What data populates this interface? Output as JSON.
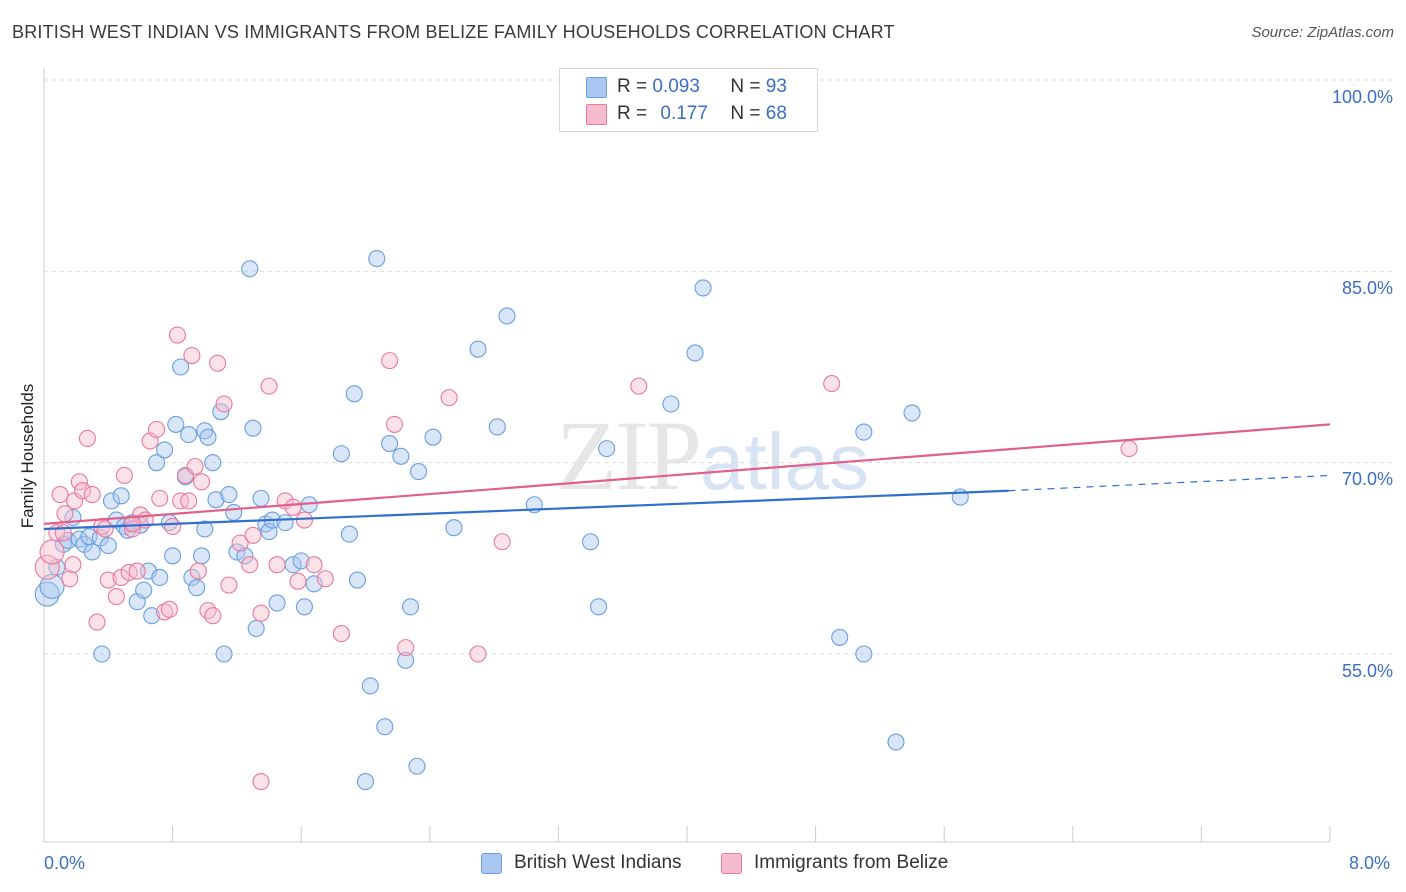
{
  "title": "BRITISH WEST INDIAN VS IMMIGRANTS FROM BELIZE FAMILY HOUSEHOLDS CORRELATION CHART",
  "source": "Source: ZipAtlas.com",
  "watermark": {
    "zip": "ZIP",
    "atlas": "atlas"
  },
  "legend_top": [
    {
      "r_label": "R = ",
      "r_value": "0.093",
      "n_label": "N = ",
      "n_value": "93",
      "color": "#a9c7f0"
    },
    {
      "r_label": "R = ",
      "r_value": "0.177",
      "n_label": "N = ",
      "n_value": "68",
      "color": "#f6bccd"
    }
  ],
  "chart_data": {
    "type": "scatter",
    "title": "BRITISH WEST INDIAN VS IMMIGRANTS FROM BELIZE FAMILY HOUSEHOLDS CORRELATION CHART",
    "xlabel": "",
    "ylabel": "Family Households",
    "xlim": [
      0,
      8
    ],
    "ylim": [
      40,
      102
    ],
    "x_tick_labels": [
      "0.0%",
      "8.0%"
    ],
    "y_ticks": [
      55,
      70,
      85,
      100
    ],
    "y_tick_labels": [
      "55.0%",
      "70.0%",
      "85.0%",
      "100.0%"
    ],
    "grid": true,
    "legend_position": "bottom",
    "series": [
      {
        "name": "British West Indians",
        "color": "#6a9ee0",
        "fill": "#a9c7f0",
        "r": 0.093,
        "n": 93,
        "trend": {
          "x0": 0,
          "y0": 64.8,
          "x1": 6.0,
          "y1": 67.8,
          "dash_to_x": 8.0,
          "dash_to_y": 69.0,
          "color": "#2f6fcf"
        },
        "points": [
          [
            0.02,
            59.7
          ],
          [
            0.05,
            60.3
          ],
          [
            0.08,
            61.8
          ],
          [
            0.12,
            63.6
          ],
          [
            0.15,
            63.9
          ],
          [
            0.18,
            65.7
          ],
          [
            0.22,
            64.0
          ],
          [
            0.25,
            63.6
          ],
          [
            0.28,
            64.2
          ],
          [
            0.3,
            63.0
          ],
          [
            0.35,
            64.1
          ],
          [
            0.36,
            55.0
          ],
          [
            0.4,
            63.5
          ],
          [
            0.42,
            67.0
          ],
          [
            0.45,
            65.5
          ],
          [
            0.48,
            67.4
          ],
          [
            0.5,
            65.0
          ],
          [
            0.52,
            64.7
          ],
          [
            0.55,
            65.3
          ],
          [
            0.58,
            59.1
          ],
          [
            0.6,
            65.1
          ],
          [
            0.65,
            61.5
          ],
          [
            0.67,
            58.0
          ],
          [
            0.7,
            70.0
          ],
          [
            0.72,
            61.0
          ],
          [
            0.75,
            71.0
          ],
          [
            0.78,
            65.3
          ],
          [
            0.8,
            62.7
          ],
          [
            0.82,
            73.0
          ],
          [
            0.85,
            77.5
          ],
          [
            0.88,
            68.9
          ],
          [
            0.9,
            72.2
          ],
          [
            0.92,
            61.0
          ],
          [
            0.95,
            60.2
          ],
          [
            0.98,
            62.7
          ],
          [
            1.0,
            72.5
          ],
          [
            1.02,
            72.0
          ],
          [
            1.05,
            70.0
          ],
          [
            1.07,
            67.1
          ],
          [
            1.1,
            74.0
          ],
          [
            1.12,
            55.0
          ],
          [
            1.15,
            67.5
          ],
          [
            1.18,
            66.1
          ],
          [
            1.2,
            63.0
          ],
          [
            1.25,
            62.7
          ],
          [
            1.28,
            85.2
          ],
          [
            1.3,
            72.7
          ],
          [
            1.32,
            57.0
          ],
          [
            1.35,
            67.2
          ],
          [
            1.38,
            65.2
          ],
          [
            1.4,
            64.6
          ],
          [
            1.42,
            65.5
          ],
          [
            1.45,
            59.0
          ],
          [
            1.5,
            65.3
          ],
          [
            1.55,
            62.0
          ],
          [
            1.6,
            62.3
          ],
          [
            1.62,
            58.7
          ],
          [
            1.65,
            66.7
          ],
          [
            1.68,
            60.5
          ],
          [
            1.85,
            70.7
          ],
          [
            1.9,
            64.4
          ],
          [
            1.95,
            60.8
          ],
          [
            1.93,
            75.4
          ],
          [
            2.0,
            45.0
          ],
          [
            2.03,
            52.5
          ],
          [
            2.07,
            86.0
          ],
          [
            2.12,
            49.3
          ],
          [
            2.15,
            71.5
          ],
          [
            2.22,
            70.5
          ],
          [
            2.25,
            54.5
          ],
          [
            2.28,
            58.7
          ],
          [
            2.32,
            46.2
          ],
          [
            2.33,
            69.3
          ],
          [
            2.42,
            72.0
          ],
          [
            2.55,
            64.9
          ],
          [
            2.7,
            78.9
          ],
          [
            2.82,
            72.8
          ],
          [
            2.88,
            81.5
          ],
          [
            3.05,
            66.7
          ],
          [
            3.4,
            63.8
          ],
          [
            3.45,
            58.7
          ],
          [
            3.5,
            71.1
          ],
          [
            3.9,
            74.6
          ],
          [
            4.05,
            78.6
          ],
          [
            4.1,
            83.7
          ],
          [
            4.95,
            56.3
          ],
          [
            5.1,
            72.4
          ],
          [
            5.1,
            55.0
          ],
          [
            5.3,
            48.1
          ],
          [
            5.4,
            73.9
          ],
          [
            5.7,
            67.3
          ],
          [
            1.0,
            64.8
          ],
          [
            0.62,
            60.0
          ]
        ]
      },
      {
        "name": "Immigrants from Belize",
        "color": "#e8799c",
        "fill": "#f6bccd",
        "r": 0.177,
        "n": 68,
        "trend": {
          "x0": 0,
          "y0": 65.2,
          "x1": 8.0,
          "y1": 73.0,
          "color": "#e0608a"
        },
        "points": [
          [
            0.02,
            61.8
          ],
          [
            0.05,
            63.0
          ],
          [
            0.08,
            64.5
          ],
          [
            0.1,
            67.5
          ],
          [
            0.13,
            66.0
          ],
          [
            0.16,
            60.9
          ],
          [
            0.19,
            67.0
          ],
          [
            0.22,
            68.5
          ],
          [
            0.24,
            67.8
          ],
          [
            0.27,
            71.9
          ],
          [
            0.3,
            67.5
          ],
          [
            0.33,
            57.5
          ],
          [
            0.36,
            65.0
          ],
          [
            0.38,
            64.8
          ],
          [
            0.4,
            60.8
          ],
          [
            0.45,
            59.5
          ],
          [
            0.48,
            61.0
          ],
          [
            0.5,
            69.0
          ],
          [
            0.53,
            61.4
          ],
          [
            0.55,
            64.8
          ],
          [
            0.58,
            61.5
          ],
          [
            0.6,
            65.9
          ],
          [
            0.63,
            65.5
          ],
          [
            0.66,
            71.7
          ],
          [
            0.7,
            72.6
          ],
          [
            0.72,
            67.2
          ],
          [
            0.75,
            58.3
          ],
          [
            0.78,
            58.5
          ],
          [
            0.8,
            65.0
          ],
          [
            0.83,
            80.0
          ],
          [
            0.85,
            67.0
          ],
          [
            0.88,
            69.0
          ],
          [
            0.9,
            67.0
          ],
          [
            0.92,
            78.4
          ],
          [
            0.94,
            69.7
          ],
          [
            0.96,
            61.5
          ],
          [
            0.98,
            68.5
          ],
          [
            1.02,
            58.4
          ],
          [
            1.05,
            58.0
          ],
          [
            1.08,
            77.8
          ],
          [
            1.12,
            74.6
          ],
          [
            1.15,
            60.4
          ],
          [
            1.22,
            63.7
          ],
          [
            1.28,
            62.0
          ],
          [
            1.3,
            64.3
          ],
          [
            1.35,
            58.2
          ],
          [
            1.4,
            76.0
          ],
          [
            1.45,
            62.0
          ],
          [
            1.5,
            67.0
          ],
          [
            1.55,
            66.5
          ],
          [
            1.58,
            60.7
          ],
          [
            1.62,
            65.5
          ],
          [
            1.75,
            60.9
          ],
          [
            1.85,
            56.6
          ],
          [
            2.15,
            78.0
          ],
          [
            2.18,
            73.0
          ],
          [
            2.25,
            55.5
          ],
          [
            2.52,
            75.1
          ],
          [
            2.7,
            55.0
          ],
          [
            2.85,
            63.8
          ],
          [
            3.7,
            76.0
          ],
          [
            4.9,
            76.2
          ],
          [
            6.75,
            71.1
          ],
          [
            1.35,
            45.0
          ],
          [
            1.68,
            62.0
          ],
          [
            0.18,
            62.0
          ],
          [
            0.12,
            64.5
          ],
          [
            0.55,
            65.2
          ]
        ]
      }
    ]
  }
}
